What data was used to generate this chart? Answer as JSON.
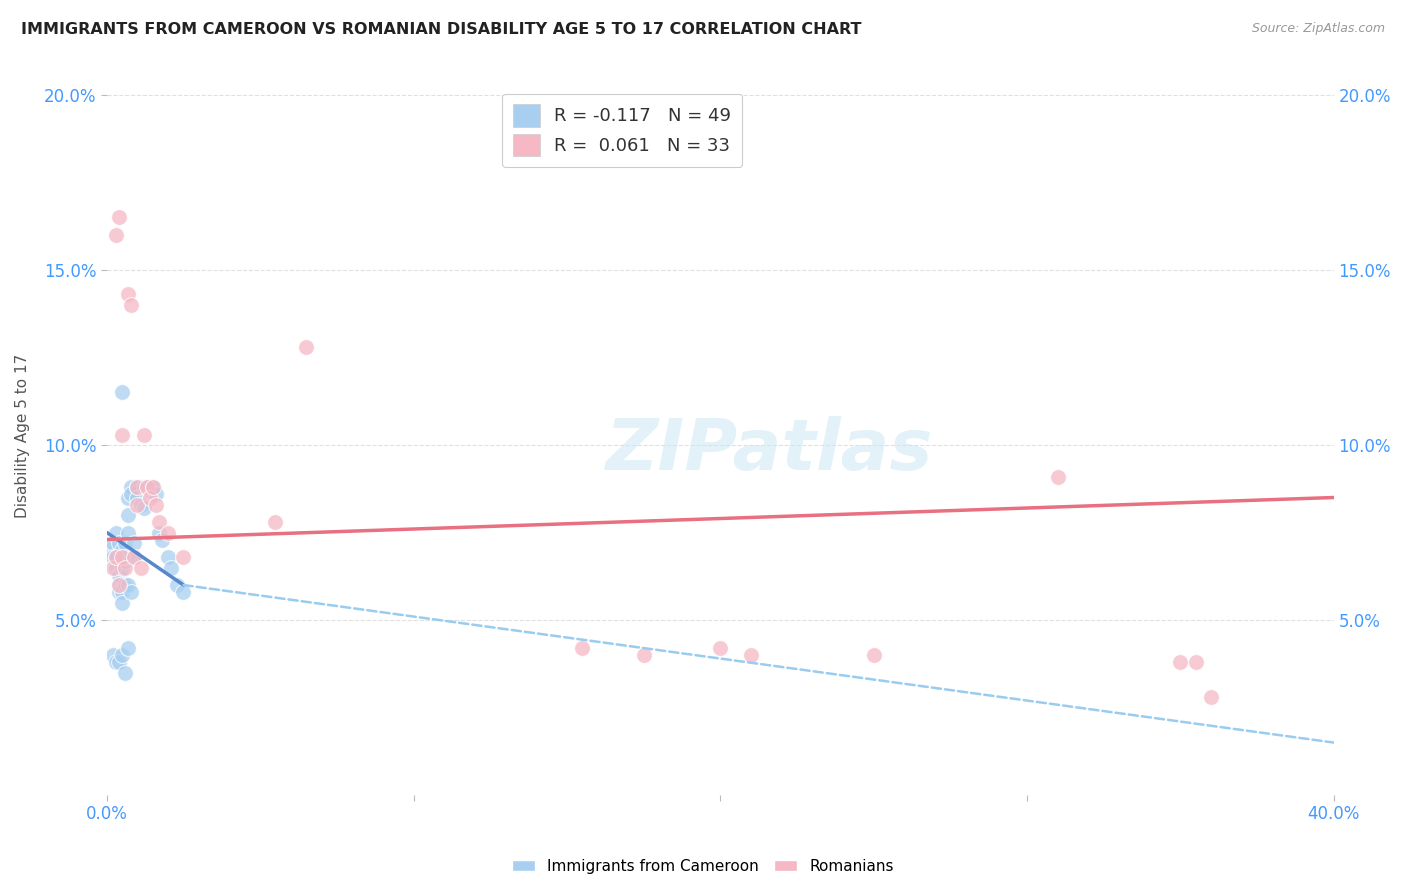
{
  "title": "IMMIGRANTS FROM CAMEROON VS ROMANIAN DISABILITY AGE 5 TO 17 CORRELATION CHART",
  "source": "Source: ZipAtlas.com",
  "ylabel": "Disability Age 5 to 17",
  "xlim": [
    0.0,
    0.4
  ],
  "ylim": [
    0.0,
    0.205
  ],
  "yticks": [
    0.05,
    0.1,
    0.15,
    0.2
  ],
  "ytick_labels": [
    "5.0%",
    "10.0%",
    "15.0%",
    "20.0%"
  ],
  "xticks": [
    0.0,
    0.1,
    0.2,
    0.3,
    0.4
  ],
  "xtick_labels": [
    "0.0%",
    "",
    "",
    "",
    "40.0%"
  ],
  "background_color": "#ffffff",
  "grid_color": "#e0e0e0",
  "legend1_label": "R = -0.117   N = 49",
  "legend2_label": "R =  0.061   N = 33",
  "legend_color1": "#a8cff0",
  "legend_color2": "#f5b8c4",
  "series1_color": "#a8cff0",
  "series2_color": "#f5b8c4",
  "line1_color": "#5588cc",
  "line2_color": "#e87080",
  "dashed_color": "#99ccee",
  "watermark": "ZIPatlas",
  "cam_x": [
    0.001,
    0.002,
    0.002,
    0.003,
    0.003,
    0.003,
    0.004,
    0.004,
    0.004,
    0.004,
    0.005,
    0.005,
    0.005,
    0.005,
    0.005,
    0.006,
    0.006,
    0.006,
    0.006,
    0.007,
    0.007,
    0.007,
    0.007,
    0.008,
    0.008,
    0.008,
    0.009,
    0.009,
    0.01,
    0.01,
    0.011,
    0.012,
    0.012,
    0.013,
    0.014,
    0.015,
    0.016,
    0.017,
    0.018,
    0.02,
    0.021,
    0.023,
    0.025,
    0.002,
    0.003,
    0.004,
    0.005,
    0.006,
    0.007
  ],
  "cam_y": [
    0.07,
    0.072,
    0.068,
    0.075,
    0.065,
    0.068,
    0.072,
    0.06,
    0.058,
    0.063,
    0.115,
    0.07,
    0.065,
    0.058,
    0.055,
    0.067,
    0.072,
    0.068,
    0.06,
    0.085,
    0.08,
    0.075,
    0.06,
    0.088,
    0.086,
    0.058,
    0.072,
    0.068,
    0.088,
    0.085,
    0.083,
    0.088,
    0.082,
    0.088,
    0.087,
    0.088,
    0.086,
    0.075,
    0.073,
    0.068,
    0.065,
    0.06,
    0.058,
    0.04,
    0.038,
    0.038,
    0.04,
    0.035,
    0.042
  ],
  "rom_x": [
    0.002,
    0.003,
    0.003,
    0.004,
    0.004,
    0.005,
    0.005,
    0.006,
    0.007,
    0.008,
    0.009,
    0.01,
    0.01,
    0.011,
    0.012,
    0.013,
    0.014,
    0.015,
    0.016,
    0.017,
    0.02,
    0.025,
    0.055,
    0.065,
    0.155,
    0.175,
    0.2,
    0.21,
    0.25,
    0.31,
    0.35,
    0.355,
    0.36
  ],
  "rom_y": [
    0.065,
    0.16,
    0.068,
    0.165,
    0.06,
    0.103,
    0.068,
    0.065,
    0.143,
    0.14,
    0.068,
    0.083,
    0.088,
    0.065,
    0.103,
    0.088,
    0.085,
    0.088,
    0.083,
    0.078,
    0.075,
    0.068,
    0.078,
    0.128,
    0.042,
    0.04,
    0.042,
    0.04,
    0.04,
    0.091,
    0.038,
    0.038,
    0.028
  ],
  "cam_trend_x0": 0.0,
  "cam_trend_x_solid_end": 0.025,
  "cam_trend_x_end": 0.4,
  "cam_trend_y0": 0.075,
  "cam_trend_y_solid_end": 0.06,
  "cam_trend_y_end": 0.015,
  "rom_trend_x0": 0.0,
  "rom_trend_x_end": 0.4,
  "rom_trend_y0": 0.073,
  "rom_trend_y_end": 0.085
}
